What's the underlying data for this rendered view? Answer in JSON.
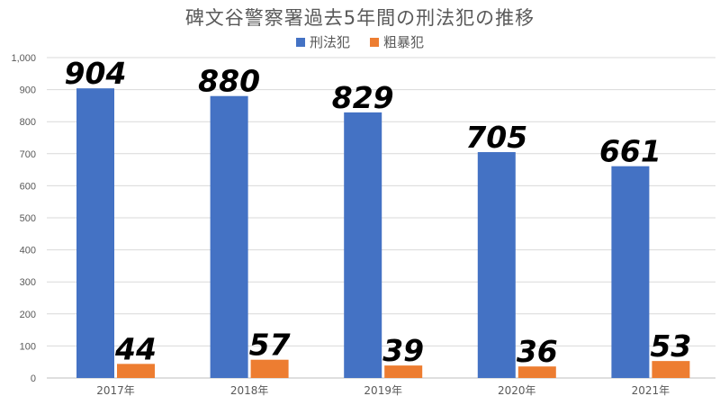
{
  "chart_data": {
    "type": "bar",
    "title": "碑文谷警察署過去5年間の刑法犯の推移",
    "categories": [
      "2017年",
      "2018年",
      "2019年",
      "2020年",
      "2021年"
    ],
    "series": [
      {
        "name": "刑法犯",
        "color": "#4472C4",
        "values": [
          904,
          880,
          829,
          705,
          661
        ]
      },
      {
        "name": "粗暴犯",
        "color": "#ED7D31",
        "values": [
          44,
          57,
          39,
          36,
          53
        ]
      }
    ],
    "ylim": [
      0,
      1000
    ],
    "yticks": [
      "0",
      "100",
      "200",
      "300",
      "400",
      "500",
      "600",
      "700",
      "800",
      "900",
      "1,000"
    ],
    "grid": true,
    "legend_position": "top"
  }
}
